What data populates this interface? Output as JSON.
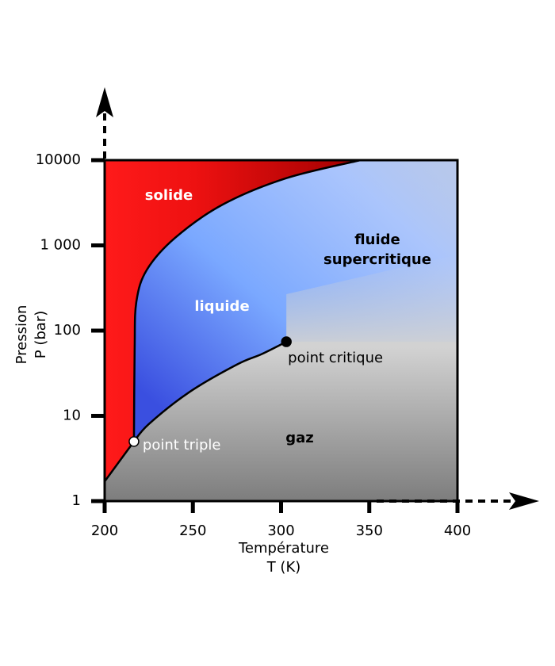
{
  "chart_data": {
    "type": "phase-diagram",
    "ylabel": [
      "Pression",
      "P (bar)"
    ],
    "xlabel": [
      "Température",
      "T (K)"
    ],
    "xlim": [
      200,
      400
    ],
    "xticks": [
      200,
      250,
      300,
      350,
      400
    ],
    "ylim": [
      1,
      10000
    ],
    "ylog": true,
    "yticks": [
      1,
      10,
      100,
      {
        "value": 1000,
        "label": "1 000"
      },
      10000
    ],
    "regions": {
      "solid": "solide",
      "liquid": "liquide",
      "supercritical": [
        "fluide",
        "supercritique"
      ],
      "gas": "gaz"
    },
    "curves": [
      {
        "x": [
          200,
          216.6
        ],
        "y": [
          1.7,
          5
        ]
      },
      {
        "x": [
          216.6,
          225,
          248,
          275,
          289,
          303
        ],
        "y": [
          5,
          8,
          19,
          40,
          53,
          74
        ]
      },
      {
        "x": [
          216.6,
          217,
          218,
          224,
          240,
          267,
          303,
          345
        ],
        "y": [
          5,
          61,
          220,
          520,
          1230,
          3020,
          6150,
          10000
        ]
      }
    ],
    "points": [
      {
        "label": "point triple",
        "x": 216.6,
        "y": 5
      },
      {
        "label": "point critique",
        "x": 303,
        "y": 74
      }
    ]
  }
}
